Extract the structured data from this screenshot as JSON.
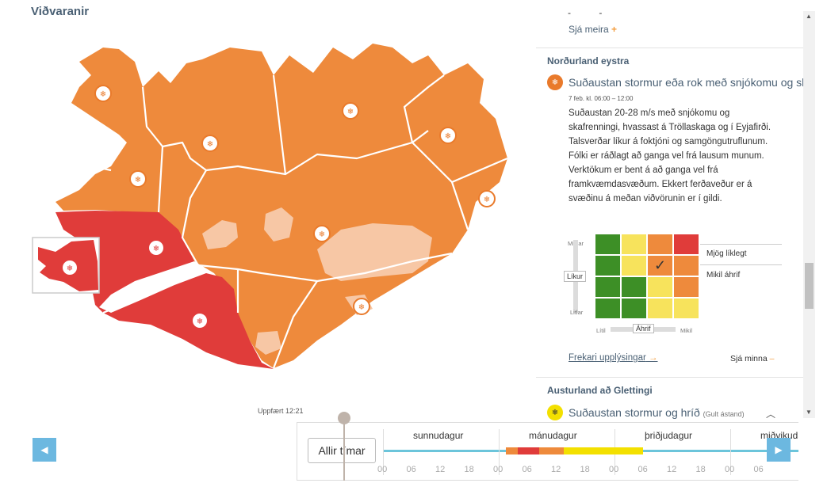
{
  "header": {
    "title": "Viðvaranir"
  },
  "map": {
    "updated": "Uppfært 12:21"
  },
  "panel": {
    "top_dashes": "- -",
    "see_more": "Sjá meira",
    "region1": {
      "name": "Norðurland eystra",
      "warning_title": "Suðaustan stormur eða rok með snjókomu og skafrenningi",
      "time": "7 feb. kl. 06:00 – 12:00",
      "text": "Suðaustan 20-28 m/s með snjókomu og skafrenningi, hvassast á Tröllaskaga og í Eyjafirði. Talsverðar líkur á foktjóni og samgöngutruflunum. Fólki er ráðlagt að ganga vel frá lausum munum. Verktökum er bent á að ganga vel frá framkvæmdasvæðum. Ekkert ferðaveður er á svæðinu á meðan viðvörunin er í gildi.",
      "matrix": {
        "y_top": "Miklar",
        "y_label": "Líkur",
        "y_bottom": "Litlar",
        "x_left": "Lítil",
        "x_label": "Áhrif",
        "x_right": "Mikil",
        "likelihood": "Mjög líklegt",
        "impact": "Mikil áhrif"
      },
      "more_info": "Frekari upplýsingar",
      "see_less": "Sjá minna"
    },
    "region2": {
      "name": "Austurland að Glettingi",
      "warning_title": "Suðaustan stormur og hríð",
      "note": "(Gult ástand)"
    }
  },
  "timeline": {
    "all_times": "Allir tímar",
    "days": [
      "sunnudagur",
      "mánudagur",
      "þriðjudagur",
      "miðvikudagur"
    ],
    "hours": [
      "00",
      "06",
      "12",
      "18",
      "00",
      "06",
      "12",
      "18",
      "00",
      "06",
      "12",
      "18",
      "00",
      "06"
    ]
  },
  "colors": {
    "orange": "#ee8a3c",
    "red": "#e03c3a",
    "yellow": "#f3e000",
    "accent_blue": "#6cb8e0"
  }
}
